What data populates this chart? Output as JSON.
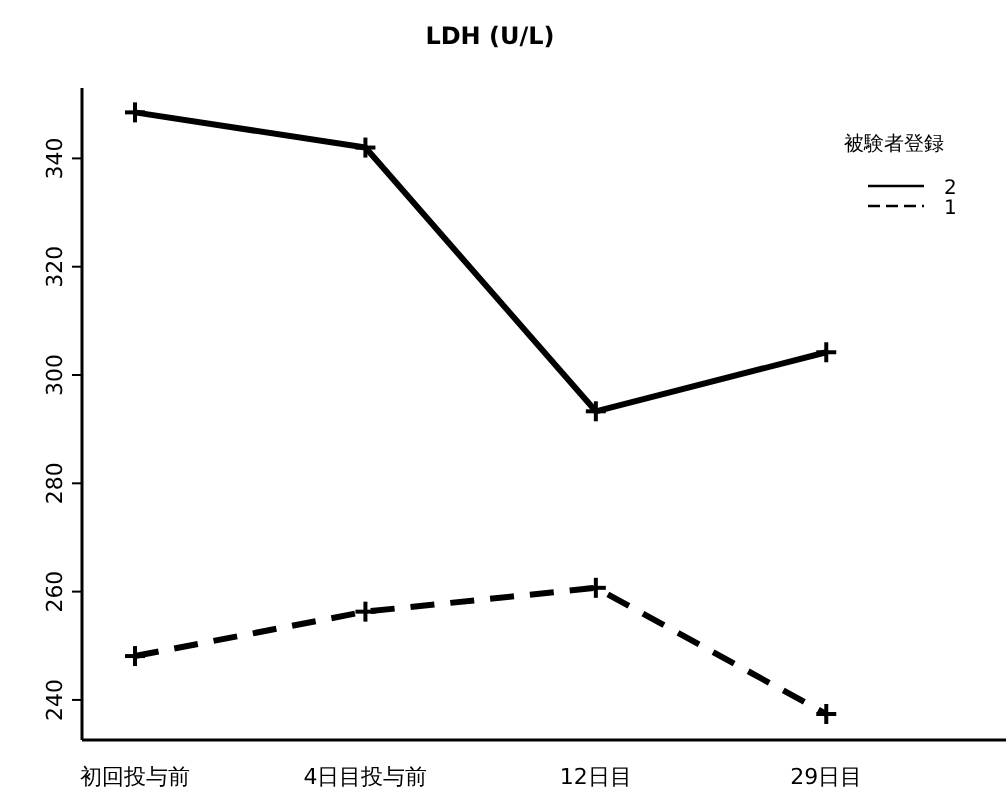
{
  "chart_data": {
    "type": "line",
    "title": "LDH (U/L)",
    "legend_title": "被験者登録",
    "categories": [
      "初回投与前",
      "4日目投与前",
      "12日目",
      "29日目"
    ],
    "series": [
      {
        "name": "2",
        "color": "#000000",
        "line_style": "solid",
        "values": [
          348.5,
          342,
          293.3,
          304.2
        ]
      },
      {
        "name": "1",
        "color": "#000000",
        "line_style": "dashed",
        "values": [
          248.1,
          256.3,
          260.7,
          237.4
        ]
      }
    ],
    "ylim": [
      232.6,
      353
    ],
    "yticks": [
      240,
      260,
      280,
      300,
      320,
      340
    ],
    "marker": "cross",
    "legend": "top right"
  }
}
